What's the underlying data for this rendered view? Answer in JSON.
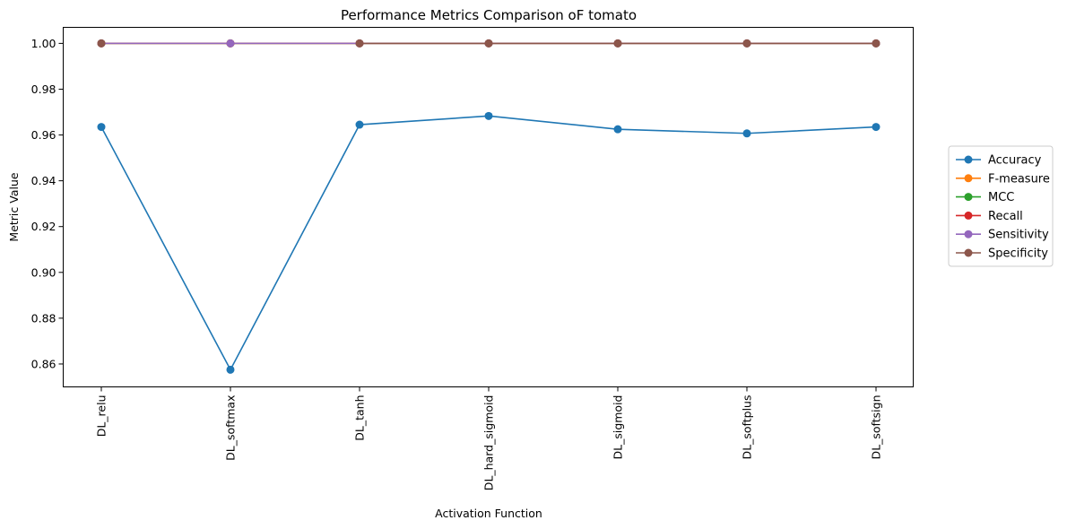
{
  "chart_data": {
    "type": "line",
    "title": "Performance Metrics Comparison oF tomato",
    "xlabel": "Activation Function",
    "ylabel": "Metric Value",
    "categories": [
      "DL_relu",
      "DL_softmax",
      "DL_tanh",
      "DL_hard_sigmoid",
      "DL_sigmoid",
      "DL_softplus",
      "DL_softsign"
    ],
    "ylim": [
      0.85,
      1.007
    ],
    "yticks": [
      "0.86",
      "0.88",
      "0.90",
      "0.92",
      "0.94",
      "0.96",
      "0.98",
      "1.00"
    ],
    "grid": false,
    "legend_position": "right",
    "series": [
      {
        "name": "Accuracy",
        "color": "#1f77b4",
        "values": [
          0.9635,
          0.8575,
          0.9645,
          0.9683,
          0.9625,
          0.9607,
          0.9635
        ]
      },
      {
        "name": "F-measure",
        "color": "#ff7f0e",
        "values": [
          1.0,
          1.0,
          1.0,
          1.0,
          1.0,
          1.0,
          1.0
        ]
      },
      {
        "name": "MCC",
        "color": "#2ca02c",
        "values": [
          1.0,
          1.0,
          1.0,
          1.0,
          1.0,
          1.0,
          1.0
        ]
      },
      {
        "name": "Recall",
        "color": "#d62728",
        "values": [
          1.0,
          1.0,
          1.0,
          1.0,
          1.0,
          1.0,
          1.0
        ]
      },
      {
        "name": "Sensitivity",
        "color": "#9467bd",
        "values": [
          1.0,
          1.0,
          1.0,
          1.0,
          1.0,
          1.0,
          1.0
        ]
      },
      {
        "name": "Specificity",
        "color": "#8c564b",
        "values": [
          1.0,
          null,
          1.0,
          1.0,
          1.0,
          1.0,
          1.0
        ]
      }
    ]
  }
}
